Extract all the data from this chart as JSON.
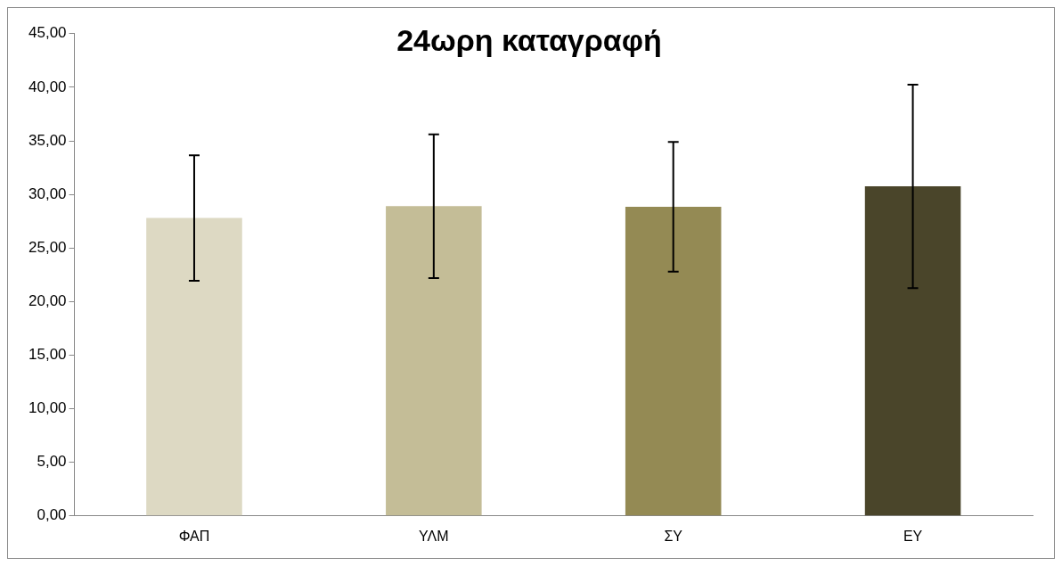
{
  "chart_data": {
    "type": "bar",
    "title": "24ωρη καταγραφή",
    "categories": [
      "ΦΑΠ",
      "ΥΛΜ",
      "ΣΥ",
      "ΕΥ"
    ],
    "values": [
      27.8,
      28.9,
      28.85,
      30.75
    ],
    "errors": [
      5.85,
      6.7,
      6.05,
      9.5
    ],
    "colors": [
      "#ddd9c3",
      "#c4bd97",
      "#948a54",
      "#4a452a"
    ],
    "ylim": [
      0,
      45
    ],
    "yticks": [
      {
        "value": 0,
        "label": "0,00"
      },
      {
        "value": 5,
        "label": "5,00"
      },
      {
        "value": 10,
        "label": "10,00"
      },
      {
        "value": 15,
        "label": "15,00"
      },
      {
        "value": 20,
        "label": "20,00"
      },
      {
        "value": 25,
        "label": "25,00"
      },
      {
        "value": 30,
        "label": "30,00"
      },
      {
        "value": 35,
        "label": "35,00"
      },
      {
        "value": 40,
        "label": "40,00"
      },
      {
        "value": 45,
        "label": "45,00"
      }
    ],
    "grid": false,
    "legend": false
  }
}
